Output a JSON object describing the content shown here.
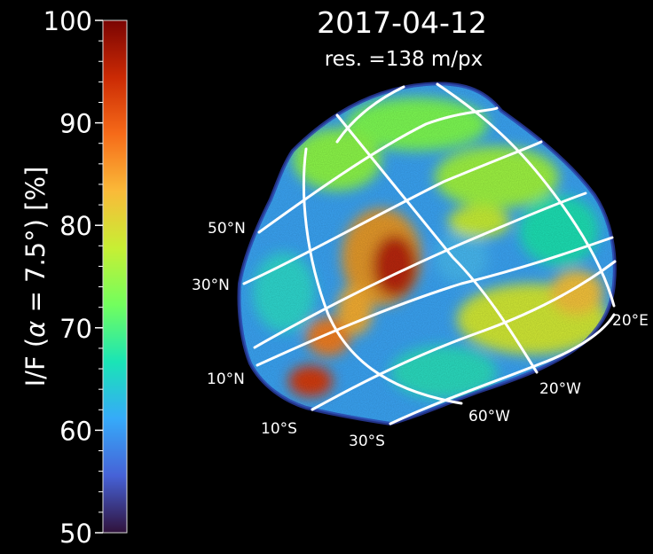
{
  "chart_data": {
    "type": "heatmap",
    "title": "2017-04-12",
    "subtitle": "res. =138 m/px",
    "colorbar": {
      "label_prefix": "I/F (",
      "label_symbol": "α",
      "label_suffix": " = 7.5°) [%]",
      "min": 50,
      "max": 100,
      "ticks": [
        {
          "value": 50,
          "label": "50"
        },
        {
          "value": 60,
          "label": "60"
        },
        {
          "value": 70,
          "label": "70"
        },
        {
          "value": 80,
          "label": "80"
        },
        {
          "value": 90,
          "label": "90"
        },
        {
          "value": 100,
          "label": "100"
        }
      ],
      "colormap": [
        "#30123b",
        "#4662d7",
        "#36aaf9",
        "#1ae4b6",
        "#72fe5e",
        "#c7ef34",
        "#faba39",
        "#f66b19",
        "#cb2a04",
        "#7a0403"
      ]
    },
    "grid_labels": [
      {
        "label": "50°N"
      },
      {
        "label": "30°N"
      },
      {
        "label": "10°N"
      },
      {
        "label": "10°S"
      },
      {
        "label": "30°S"
      },
      {
        "label": "60°W"
      },
      {
        "label": "20°W"
      },
      {
        "label": "20°E"
      }
    ],
    "grid_color": "#ffffff"
  }
}
